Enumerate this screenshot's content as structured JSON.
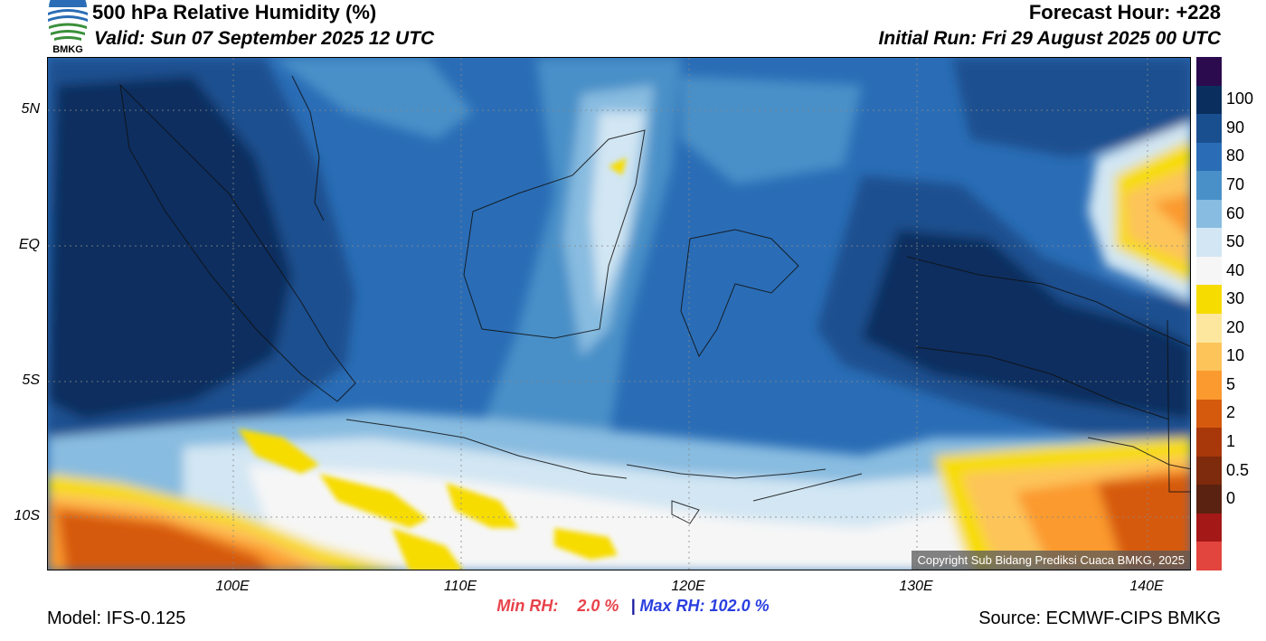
{
  "header": {
    "title": "500 hPa Relative Humidity (%)",
    "valid": "Valid: Sun 07 September 2025 12 UTC",
    "forecast_hour": "Forecast Hour: +228",
    "initial_run": "Initial Run: Fri 29 August 2025 00 UTC"
  },
  "logo": {
    "text": "BMKG",
    "icon": "bmkg-logo-icon"
  },
  "axes": {
    "lat_labels": [
      "5N",
      "EQ",
      "5S",
      "10S"
    ],
    "lon_labels": [
      "100E",
      "110E",
      "120E",
      "130E",
      "140E"
    ]
  },
  "colorbar": {
    "labels": [
      "100",
      "90",
      "80",
      "70",
      "60",
      "50",
      "40",
      "30",
      "20",
      "10",
      "5",
      "2",
      "1",
      "0.5",
      "0"
    ],
    "colors": [
      "#2c0a4e",
      "#0a2f5e",
      "#1a4f8f",
      "#2a6db6",
      "#4a90c8",
      "#88bce0",
      "#d2e6f3",
      "#f6f6f6",
      "#f7dc00",
      "#fde79e",
      "#fdc45a",
      "#fb9a2e",
      "#d65a0e",
      "#a8380a",
      "#7e2a0c",
      "#5a2210",
      "#a51818",
      "#e2453e"
    ]
  },
  "copyright": "Copyright Sub Bidang Prediksi Cuaca BMKG, 2025",
  "stats": {
    "min_label": "Min RH:",
    "min_value": "2.0 %",
    "separator": "|",
    "max_label": "Max RH:",
    "max_value": "102.0 %"
  },
  "footer": {
    "model": "Model: IFS-0.125",
    "source": "Source: ECMWF-CIPS BMKG"
  }
}
